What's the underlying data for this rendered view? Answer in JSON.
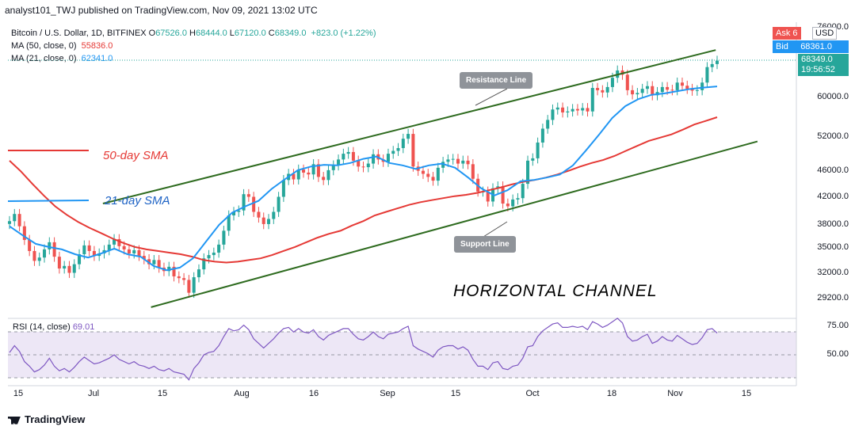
{
  "header": {
    "publisher_line": "analyst101_TWJ published on TradingView.com, Nov 09, 2021 13:02 UTC"
  },
  "legend": {
    "symbol": "Bitcoin / U.S. Dollar, 1D, BITFINEX",
    "open_label": "O",
    "open": "67526.0",
    "high_label": "H",
    "high": "68444.0",
    "low_label": "L",
    "low": "67120.0",
    "close_label": "C",
    "close": "68349.0",
    "change": "+823.0 (+1.22%)",
    "ma50_label": "MA (50, close, 0)",
    "ma50_value": "55836.0",
    "ma21_label": "MA (21, close, 0)",
    "ma21_value": "62341.0"
  },
  "price_tags": {
    "ask_label": "Ask",
    "ask_value": "6",
    "currency": "USD",
    "bid_label": "Bid",
    "bid_value": "68361.0",
    "last_value": "68349.0",
    "countdown": "19:56:52"
  },
  "rsi_legend": {
    "label": "RSI (14, close)",
    "value": "69.01"
  },
  "annotations": {
    "sma50": "50-day SMA",
    "sma21": "21-day SMA",
    "resistance": "Resistance Line",
    "support": "Support Line",
    "channel": "HORIZONTAL CHANNEL"
  },
  "brand": "TradingView",
  "colors": {
    "up": "#26a69a",
    "down": "#ef5350",
    "ma50": "#e53935",
    "ma21": "#2196f3",
    "trend": "#2e6b1f",
    "rsi": "#7e57c2",
    "rsi_band": "#ede7f6"
  },
  "chart_data": {
    "type": "candlestick",
    "y_ticks": [
      "76000.0",
      "60000.0",
      "52000.0",
      "46000.0",
      "42000.0",
      "38000.0",
      "35000.0",
      "32000.0",
      "29200.0"
    ],
    "x_ticks": [
      "15",
      "Jul",
      "15",
      "Aug",
      "16",
      "Sep",
      "15",
      "Oct",
      "18",
      "Nov",
      "15"
    ],
    "rsi_ticks": [
      "75.00",
      "50.00"
    ],
    "rsi_band": [
      30,
      70
    ],
    "ohlc_close": [
      38500,
      39500,
      37800,
      36000,
      34600,
      33400,
      33800,
      34800,
      35700,
      33900,
      32500,
      32800,
      32000,
      33000,
      34200,
      35300,
      34600,
      34000,
      34300,
      34700,
      35400,
      36100,
      35200,
      34800,
      34300,
      34700,
      34000,
      33600,
      33000,
      33500,
      32600,
      32200,
      32700,
      31600,
      31400,
      31200,
      29800,
      31500,
      32400,
      33700,
      34100,
      34400,
      35400,
      37200,
      39300,
      39800,
      40000,
      42400,
      42000,
      39800,
      39000,
      38100,
      38800,
      39800,
      42000,
      44600,
      45600,
      44700,
      46300,
      45800,
      45500,
      47200,
      45100,
      44600,
      46200,
      47000,
      48000,
      49000,
      49300,
      47800,
      46800,
      46700,
      47300,
      48900,
      48000,
      47600,
      49000,
      49500,
      50000,
      51700,
      52600,
      46800,
      46100,
      45600,
      45100,
      44500,
      46600,
      47600,
      48000,
      48100,
      47300,
      47800,
      47200,
      44800,
      42800,
      42800,
      41300,
      43300,
      43600,
      41000,
      40600,
      41600,
      41800,
      44000,
      47800,
      48200,
      51000,
      53600,
      55300,
      57400,
      57800,
      56800,
      57000,
      57500,
      57200,
      57700,
      57000,
      62000,
      61500,
      61000,
      62200,
      64300,
      66000,
      65000,
      61500,
      60600,
      60900,
      61800,
      62400,
      60400,
      61100,
      62200,
      61600,
      61500,
      63200,
      62500,
      61800,
      61400,
      61500,
      63200,
      66800,
      67526,
      68349
    ],
    "ma50": [
      47800,
      46000,
      44000,
      42200,
      40600,
      39400,
      38400,
      37600,
      36900,
      36200,
      35600,
      35100,
      34800,
      34600,
      34400,
      34200,
      33900,
      33500,
      33300,
      33200,
      33300,
      33500,
      33700,
      34100,
      34600,
      35100,
      35700,
      36300,
      36800,
      37200,
      37900,
      38500,
      39300,
      39800,
      40300,
      40800,
      41200,
      41500,
      41800,
      42100,
      42300,
      42600,
      43000,
      43400,
      43900,
      44300,
      44600,
      45000,
      45500,
      46100,
      46800,
      47400,
      47900,
      48600,
      49500,
      50400,
      51300,
      51900,
      52500,
      53400,
      54400,
      55100,
      55836
    ],
    "ma21": [
      37800,
      36600,
      35500,
      35100,
      34800,
      34200,
      33800,
      34300,
      34900,
      34200,
      33900,
      32800,
      32300,
      32600,
      33700,
      35800,
      38000,
      39700,
      40600,
      41400,
      43200,
      44700,
      46200,
      46800,
      47100,
      47000,
      47400,
      48100,
      48500,
      47400,
      47000,
      46400,
      47000,
      47300,
      46600,
      45000,
      43300,
      42200,
      43000,
      44400,
      44600,
      45000,
      45500,
      47000,
      49600,
      52500,
      55700,
      58100,
      59600,
      60500,
      60800,
      61300,
      61800,
      62100,
      62341
    ],
    "rsi": [
      52,
      58,
      53,
      44,
      40,
      35,
      37,
      41,
      47,
      40,
      36,
      38,
      35,
      39,
      44,
      48,
      45,
      42,
      43,
      45,
      47,
      50,
      46,
      44,
      42,
      44,
      41,
      40,
      38,
      40,
      37,
      36,
      38,
      35,
      34,
      33,
      28,
      38,
      43,
      50,
      52,
      53,
      58,
      66,
      73,
      71,
      72,
      76,
      72,
      64,
      60,
      56,
      60,
      64,
      69,
      73,
      74,
      70,
      73,
      70,
      69,
      72,
      66,
      63,
      67,
      69,
      71,
      73,
      73,
      68,
      64,
      63,
      66,
      70,
      66,
      64,
      68,
      69,
      70,
      73,
      75,
      58,
      55,
      53,
      51,
      48,
      54,
      57,
      58,
      58,
      55,
      57,
      54,
      46,
      40,
      40,
      37,
      43,
      44,
      38,
      37,
      40,
      41,
      47,
      57,
      58,
      66,
      71,
      74,
      77,
      78,
      74,
      74,
      75,
      74,
      75,
      72,
      79,
      77,
      74,
      76,
      79,
      82,
      78,
      66,
      62,
      63,
      66,
      68,
      60,
      62,
      66,
      63,
      62,
      67,
      64,
      61,
      59,
      60,
      65,
      72,
      73,
      69.01
    ],
    "channel": {
      "resistance": [
        {
          "x": 0.132,
          "y": 41000
        },
        {
          "x": 0.998,
          "y": 71000
        }
      ],
      "support": [
        {
          "x": 0.2,
          "y": 28300
        },
        {
          "x": 1.057,
          "y": 51200
        }
      ]
    }
  }
}
